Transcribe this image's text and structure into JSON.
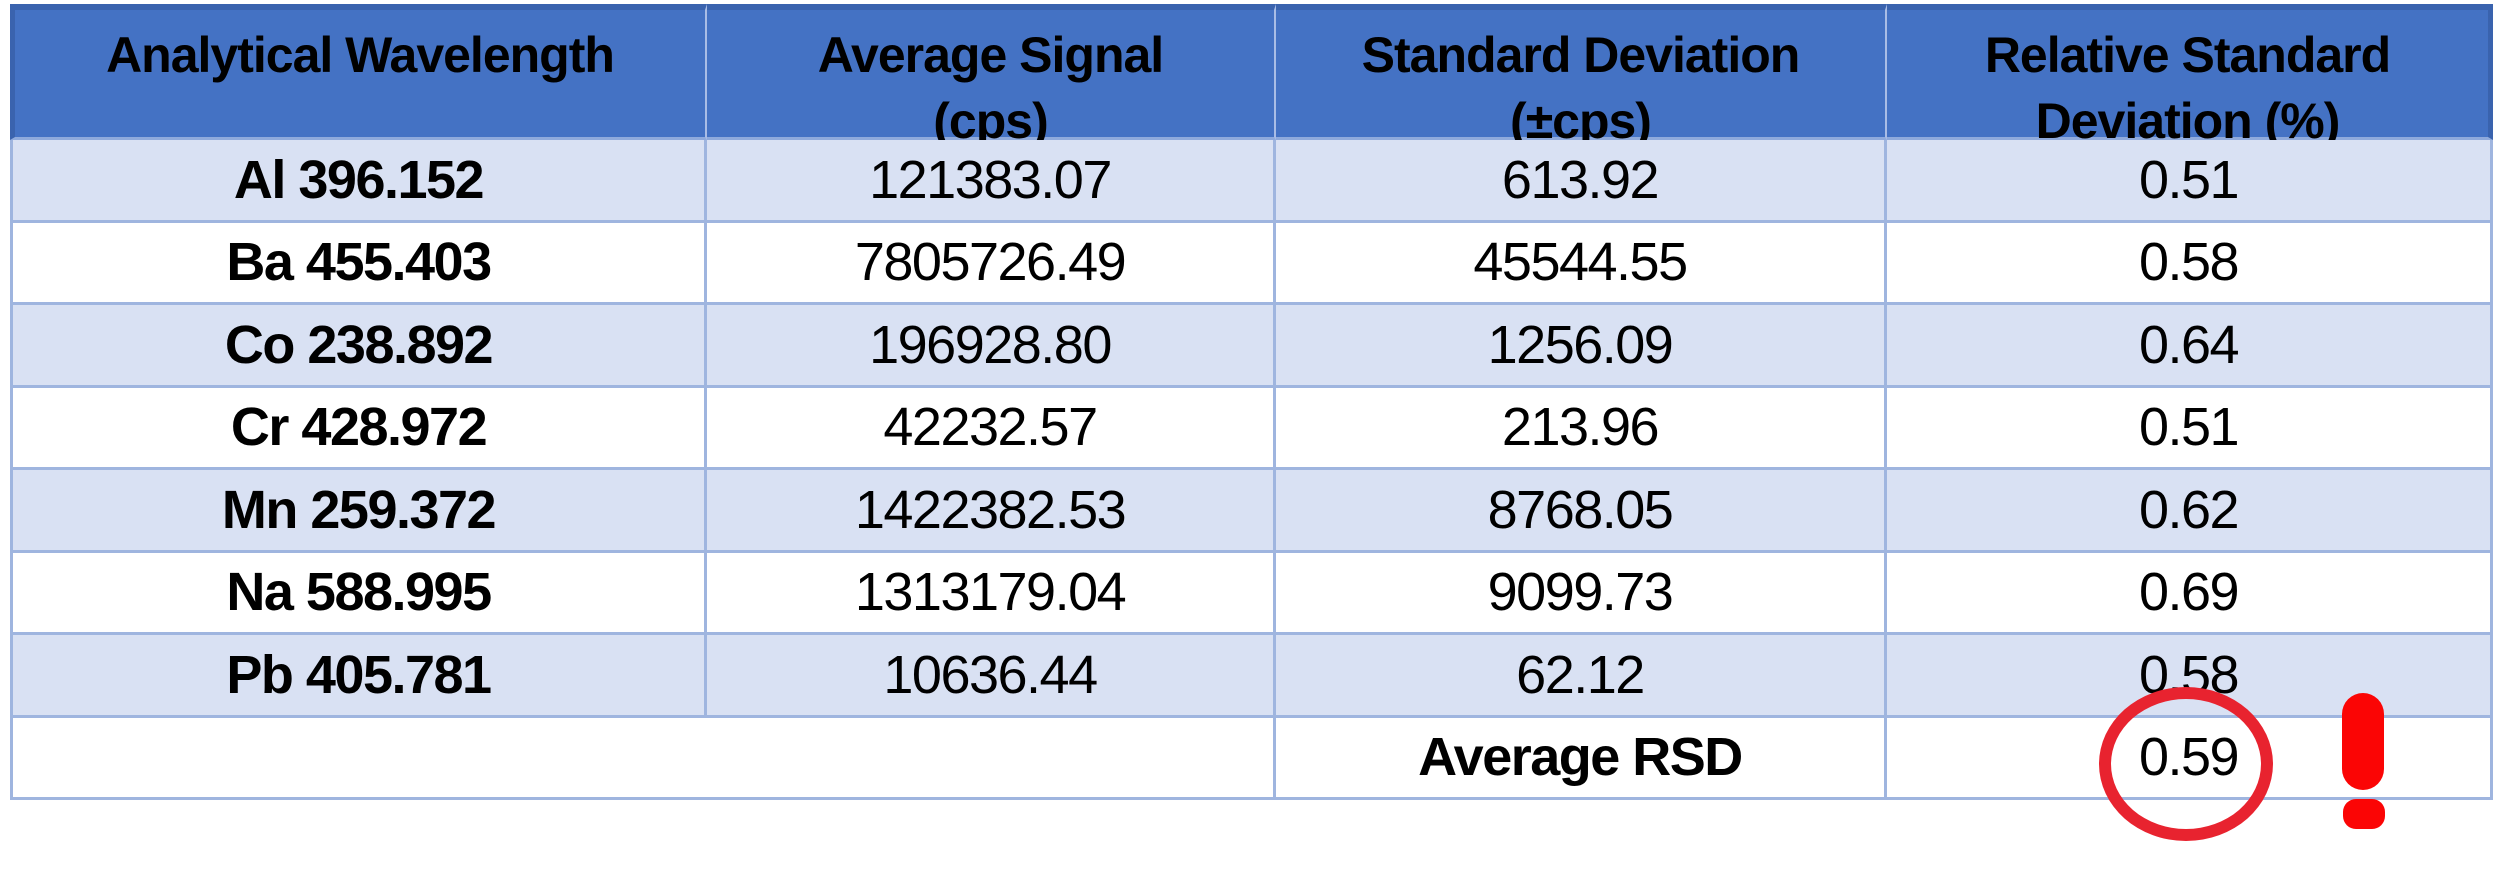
{
  "table": {
    "headers": [
      {
        "key": "analytical-wavelength",
        "line1": "Analytical Wavelength",
        "line2": ""
      },
      {
        "key": "average-signal",
        "line1": "Average Signal",
        "line2": "(cps)"
      },
      {
        "key": "standard-deviation",
        "line1": "Standard Deviation",
        "line2": "(±cps)"
      },
      {
        "key": "relative-standard-deviation",
        "line1": "Relative Standard",
        "line2": "Deviation (%)"
      }
    ],
    "rows": [
      [
        "Al 396.152",
        "121383.07",
        "613.92",
        "0.51"
      ],
      [
        "Ba 455.403",
        "7805726.49",
        "45544.55",
        "0.58"
      ],
      [
        "Co 238.892",
        "196928.80",
        "1256.09",
        "0.64"
      ],
      [
        "Cr 428.972",
        "42232.57",
        "213.96",
        "0.51"
      ],
      [
        "Mn 259.372",
        "1422382.53",
        "8768.05",
        "0.62"
      ],
      [
        "Na 588.995",
        "1313179.04",
        "9099.73",
        "0.69"
      ],
      [
        "Pb 405.781",
        "10636.44",
        "62.12",
        "0.58"
      ]
    ],
    "footer": {
      "label": "Average RSD",
      "value": "0.59"
    }
  },
  "chart_data": {
    "type": "table",
    "columns": [
      "Analytical Wavelength",
      "Average Signal (cps)",
      "Standard Deviation (±cps)",
      "Relative Standard Deviation (%)"
    ],
    "rows": [
      [
        "Al 396.152",
        121383.07,
        613.92,
        0.51
      ],
      [
        "Ba 455.403",
        7805726.49,
        45544.55,
        0.58
      ],
      [
        "Co 238.892",
        196928.8,
        1256.09,
        0.64
      ],
      [
        "Cr 428.972",
        42232.57,
        213.96,
        0.51
      ],
      [
        "Mn 259.372",
        1422382.53,
        8768.05,
        0.62
      ],
      [
        "Na 588.995",
        1313179.04,
        9099.73,
        0.69
      ],
      [
        "Pb 405.781",
        10636.44,
        62.12,
        0.58
      ]
    ],
    "footer_row": [
      "",
      "",
      "Average RSD",
      0.59
    ],
    "banded_rows": true,
    "annotation": "Average RSD value 0.59 circled in red with red exclamation mark"
  },
  "annotations": {
    "circled_value": "0.59",
    "exclamation": "!"
  },
  "colors": {
    "header_fill": "#4472C4",
    "header_outline": "#3A63AE",
    "band_fill": "#D9E1F3",
    "border": "#9FB5DF",
    "circle_red": "#E8232F",
    "exclamation_red": "#FB0505"
  }
}
